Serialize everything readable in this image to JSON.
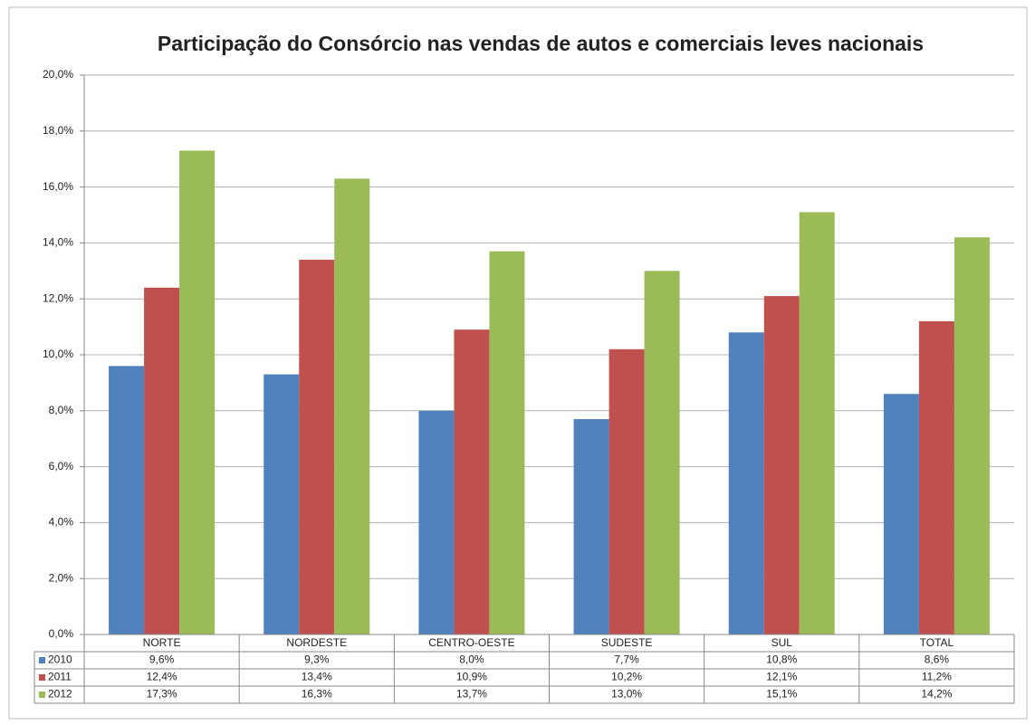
{
  "chart_data": {
    "type": "bar",
    "title": "Participação do Consórcio nas vendas de autos e comerciais leves nacionais",
    "categories": [
      "NORTE",
      "NORDESTE",
      "CENTRO-OESTE",
      "SUDESTE",
      "SUL",
      "TOTAL"
    ],
    "series": [
      {
        "name": "2010",
        "color": "#4f81bd",
        "values": [
          9.6,
          9.3,
          8.0,
          7.7,
          10.8,
          8.6
        ],
        "value_labels": [
          "9,6%",
          "9,3%",
          "8,0%",
          "7,7%",
          "10,8%",
          "8,6%"
        ]
      },
      {
        "name": "2011",
        "color": "#c0504d",
        "values": [
          12.4,
          13.4,
          10.9,
          10.2,
          12.1,
          11.2
        ],
        "value_labels": [
          "12,4%",
          "13,4%",
          "10,9%",
          "10,2%",
          "12,1%",
          "11,2%"
        ]
      },
      {
        "name": "2012",
        "color": "#9bbb59",
        "values": [
          17.3,
          16.3,
          13.7,
          13.0,
          15.1,
          14.2
        ],
        "value_labels": [
          "17,3%",
          "16,3%",
          "13,7%",
          "13,0%",
          "15,1%",
          "14,2%"
        ]
      }
    ],
    "ylim": [
      0,
      20
    ],
    "yticks": [
      {
        "value": 0,
        "label": "0,0%"
      },
      {
        "value": 2,
        "label": "2,0%"
      },
      {
        "value": 4,
        "label": "4,0%"
      },
      {
        "value": 6,
        "label": "6,0%"
      },
      {
        "value": 8,
        "label": "8,0%"
      },
      {
        "value": 10,
        "label": "10,0%"
      },
      {
        "value": 12,
        "label": "12,0%"
      },
      {
        "value": 14,
        "label": "14,0%"
      },
      {
        "value": 16,
        "label": "16,0%"
      },
      {
        "value": 18,
        "label": "18,0%"
      },
      {
        "value": 20,
        "label": "20,0%"
      }
    ],
    "grid": true
  }
}
